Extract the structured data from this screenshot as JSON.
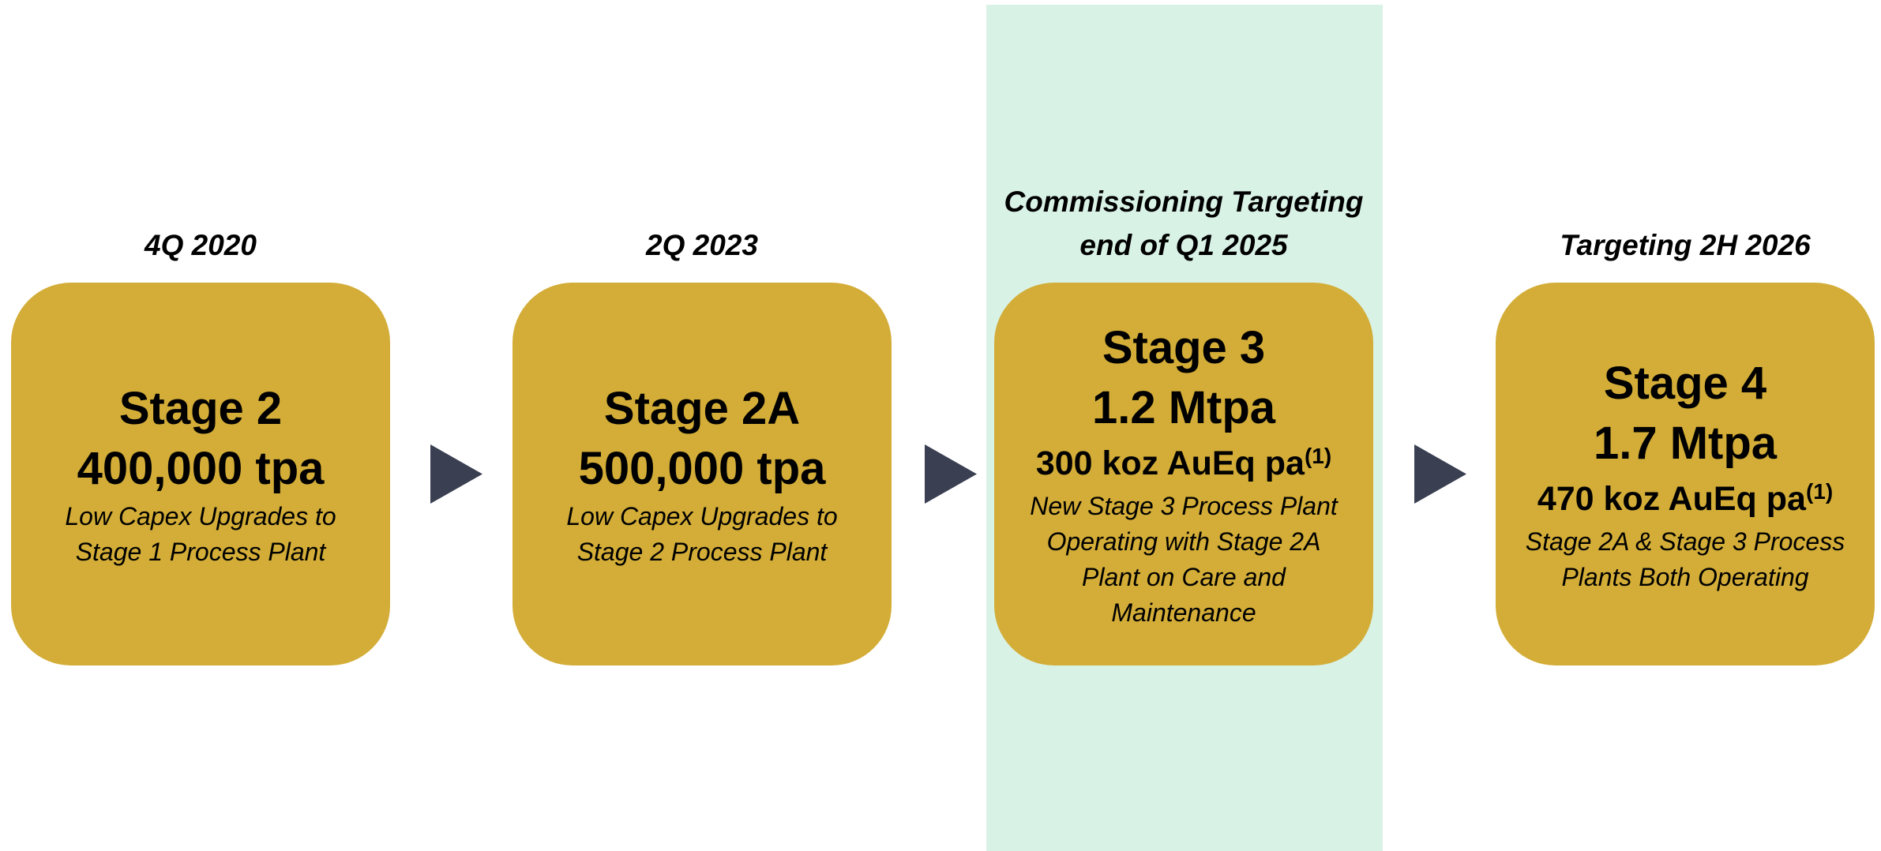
{
  "stages": [
    {
      "date": [
        "4Q 2020"
      ],
      "title": "Stage 2",
      "capacity": "400,000 tpa",
      "description": [
        "Low Capex Upgrades to",
        "Stage 1 Process Plant"
      ]
    },
    {
      "date": [
        "2Q 2023"
      ],
      "title": "Stage 2A",
      "capacity": "500,000 tpa",
      "description": [
        "Low Capex Upgrades to",
        "Stage 2 Process Plant"
      ]
    },
    {
      "date": [
        "Commissioning Targeting",
        "end of Q1 2025"
      ],
      "title": "Stage 3",
      "capacity": "1.2 Mtpa",
      "output": "300 koz AuEq pa",
      "output_note": "(1)",
      "description": [
        "New Stage 3 Process Plant",
        "Operating with Stage 2A",
        "Plant on Care and",
        "Maintenance"
      ]
    },
    {
      "date": [
        "Targeting 2H 2026"
      ],
      "title": "Stage 4",
      "capacity": "1.7 Mtpa",
      "output": "470 koz AuEq pa",
      "output_note": "(1)",
      "description": [
        "Stage 2A & Stage 3 Process",
        "Plants Both Operating"
      ]
    }
  ]
}
